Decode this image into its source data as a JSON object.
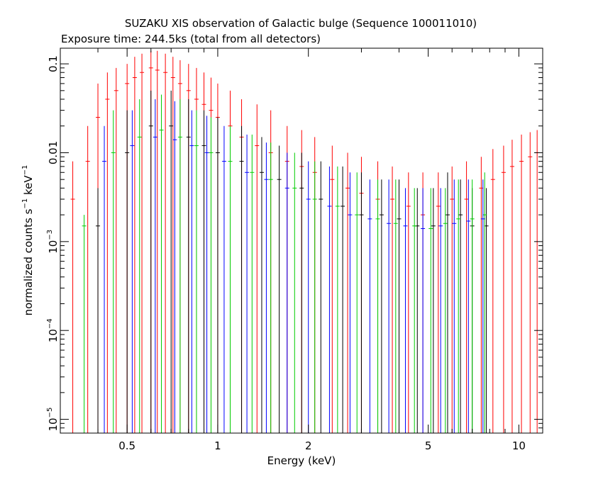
{
  "chart_data": {
    "type": "scatter",
    "title": "SUZAKU XIS observation of Galactic bulge (Sequence 100011010)",
    "subtitle": "Exposure time: 244.5ks (total from all detectors)",
    "xlabel": "Energy (keV)",
    "ylabel": "normalized counts s",
    "ylabel_sup1": "−1",
    "ylabel_mid": " keV",
    "ylabel_sup2": "−1",
    "x_scale": "log",
    "y_scale": "log",
    "xlim": [
      0.3,
      12
    ],
    "ylim": [
      7e-06,
      0.15
    ],
    "x_ticks": [
      {
        "value": 0.5,
        "label": "0.5"
      },
      {
        "value": 1,
        "label": "1"
      },
      {
        "value": 2,
        "label": "2"
      },
      {
        "value": 5,
        "label": "5"
      },
      {
        "value": 10,
        "label": "10"
      }
    ],
    "y_ticks": [
      {
        "value": 0.1,
        "label": "0.1",
        "exp": ""
      },
      {
        "value": 0.01,
        "label": "0.01",
        "exp": ""
      },
      {
        "value": 0.001,
        "label": "10",
        "exp": "−3"
      },
      {
        "value": 0.0001,
        "label": "10",
        "exp": "−4"
      },
      {
        "value": 1e-05,
        "label": "10",
        "exp": "−5"
      }
    ],
    "series": [
      {
        "color": "#ff0000",
        "points": [
          [
            0.33,
            0.003,
            0.008
          ],
          [
            0.37,
            0.008,
            0.02
          ],
          [
            0.4,
            0.025,
            0.06
          ],
          [
            0.43,
            0.04,
            0.08
          ],
          [
            0.46,
            0.05,
            0.09
          ],
          [
            0.5,
            0.06,
            0.1
          ],
          [
            0.53,
            0.07,
            0.12
          ],
          [
            0.56,
            0.08,
            0.13
          ],
          [
            0.6,
            0.09,
            0.14
          ],
          [
            0.63,
            0.085,
            0.14
          ],
          [
            0.67,
            0.08,
            0.13
          ],
          [
            0.71,
            0.07,
            0.12
          ],
          [
            0.75,
            0.06,
            0.11
          ],
          [
            0.8,
            0.05,
            0.1
          ],
          [
            0.85,
            0.04,
            0.09
          ],
          [
            0.9,
            0.035,
            0.08
          ],
          [
            0.95,
            0.03,
            0.07
          ],
          [
            1.0,
            0.025,
            0.06
          ],
          [
            1.1,
            0.02,
            0.05
          ],
          [
            1.2,
            0.015,
            0.04
          ],
          [
            1.35,
            0.012,
            0.035
          ],
          [
            1.5,
            0.01,
            0.03
          ],
          [
            1.7,
            0.008,
            0.02
          ],
          [
            1.9,
            0.007,
            0.018
          ],
          [
            2.1,
            0.006,
            0.015
          ],
          [
            2.4,
            0.005,
            0.012
          ],
          [
            2.7,
            0.004,
            0.01
          ],
          [
            3.0,
            0.0035,
            0.009
          ],
          [
            3.4,
            0.003,
            0.008
          ],
          [
            3.8,
            0.003,
            0.007
          ],
          [
            4.3,
            0.0025,
            0.006
          ],
          [
            4.8,
            0.002,
            0.006
          ],
          [
            5.4,
            0.0025,
            0.006
          ],
          [
            6.0,
            0.003,
            0.007
          ],
          [
            6.7,
            0.003,
            0.008
          ],
          [
            7.5,
            0.004,
            0.009
          ],
          [
            8.2,
            0.005,
            0.011
          ],
          [
            8.9,
            0.006,
            0.012
          ],
          [
            9.5,
            0.007,
            0.014
          ],
          [
            10.2,
            0.008,
            0.016
          ],
          [
            10.9,
            0.009,
            0.017
          ],
          [
            11.5,
            0.01,
            0.018
          ]
        ]
      },
      {
        "color": "#000000",
        "points": [
          [
            0.4,
            0.0015,
            0.004
          ],
          [
            0.5,
            0.01,
            0.03
          ],
          [
            0.6,
            0.02,
            0.05
          ],
          [
            0.7,
            0.02,
            0.05
          ],
          [
            0.8,
            0.015,
            0.04
          ],
          [
            0.9,
            0.012,
            0.03
          ],
          [
            1.0,
            0.01,
            0.025
          ],
          [
            1.2,
            0.008,
            0.02
          ],
          [
            1.4,
            0.006,
            0.015
          ],
          [
            1.6,
            0.005,
            0.012
          ],
          [
            1.9,
            0.004,
            0.01
          ],
          [
            2.2,
            0.003,
            0.008
          ],
          [
            2.6,
            0.0025,
            0.007
          ],
          [
            3.0,
            0.002,
            0.006
          ],
          [
            3.5,
            0.002,
            0.005
          ],
          [
            4.0,
            0.0018,
            0.005
          ],
          [
            4.6,
            0.0015,
            0.004
          ],
          [
            5.2,
            0.0015,
            0.004
          ],
          [
            5.8,
            0.002,
            0.006
          ],
          [
            6.4,
            0.002,
            0.005
          ],
          [
            7.0,
            0.0015,
            0.004
          ],
          [
            7.8,
            0.0015,
            0.004
          ]
        ]
      },
      {
        "color": "#00cc00",
        "points": [
          [
            0.36,
            0.0015,
            0.002
          ],
          [
            0.45,
            0.01,
            0.03
          ],
          [
            0.55,
            0.015,
            0.04
          ],
          [
            0.65,
            0.018,
            0.045
          ],
          [
            0.75,
            0.015,
            0.04
          ],
          [
            0.85,
            0.012,
            0.03
          ],
          [
            0.95,
            0.01,
            0.025
          ],
          [
            1.1,
            0.008,
            0.02
          ],
          [
            1.3,
            0.006,
            0.016
          ],
          [
            1.5,
            0.005,
            0.013
          ],
          [
            1.8,
            0.004,
            0.01
          ],
          [
            2.1,
            0.003,
            0.008
          ],
          [
            2.5,
            0.0025,
            0.007
          ],
          [
            2.9,
            0.002,
            0.006
          ],
          [
            3.4,
            0.0018,
            0.005
          ],
          [
            3.9,
            0.0016,
            0.005
          ],
          [
            4.5,
            0.0015,
            0.004
          ],
          [
            5.1,
            0.0014,
            0.004
          ],
          [
            5.7,
            0.0016,
            0.004
          ],
          [
            6.3,
            0.0018,
            0.005
          ],
          [
            7.0,
            0.0018,
            0.005
          ],
          [
            7.7,
            0.002,
            0.006
          ]
        ]
      },
      {
        "color": "#0000ff",
        "points": [
          [
            0.42,
            0.008,
            0.02
          ],
          [
            0.52,
            0.012,
            0.03
          ],
          [
            0.62,
            0.015,
            0.04
          ],
          [
            0.72,
            0.014,
            0.038
          ],
          [
            0.82,
            0.012,
            0.03
          ],
          [
            0.92,
            0.01,
            0.026
          ],
          [
            1.05,
            0.008,
            0.02
          ],
          [
            1.25,
            0.006,
            0.016
          ],
          [
            1.45,
            0.005,
            0.013
          ],
          [
            1.7,
            0.004,
            0.01
          ],
          [
            2.0,
            0.003,
            0.008
          ],
          [
            2.35,
            0.0025,
            0.007
          ],
          [
            2.75,
            0.002,
            0.006
          ],
          [
            3.2,
            0.0018,
            0.005
          ],
          [
            3.7,
            0.0016,
            0.005
          ],
          [
            4.2,
            0.0015,
            0.004
          ],
          [
            4.8,
            0.0014,
            0.004
          ],
          [
            5.5,
            0.0015,
            0.004
          ],
          [
            6.1,
            0.0016,
            0.005
          ],
          [
            6.8,
            0.0017,
            0.005
          ],
          [
            7.6,
            0.0018,
            0.005
          ]
        ]
      }
    ]
  }
}
